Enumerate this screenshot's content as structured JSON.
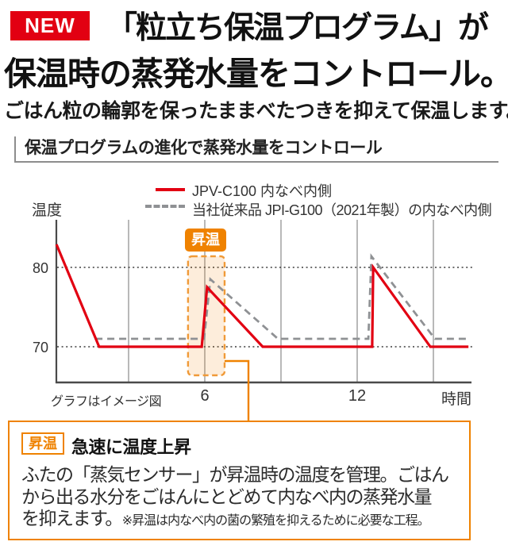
{
  "colors": {
    "brand_red": "#e20012",
    "orange": "#ef8200",
    "orange_dash": "#f09a38",
    "gray_dashed_line": "#8f9194",
    "grid_line": "#9b9b9b",
    "axis_line": "#4a4a4a"
  },
  "header": {
    "badge_new": "NEW",
    "title_line1": "「粒立ち保温プログラム」が",
    "title_line2": "保温時の蒸発水量をコントロール。",
    "subtitle": "ごはん粒の輪郭を保ったままべたつきを抑えて保温します。"
  },
  "section": {
    "heading": "保温プログラムの進化で蒸発水量をコントロール"
  },
  "chart_data": {
    "type": "line",
    "y_axis_label": "温度",
    "x_axis_label": "時間",
    "yticks": [
      80,
      70
    ],
    "xticks": [
      6,
      12
    ],
    "grid_hours": [
      3,
      6,
      9,
      12,
      15
    ],
    "x_range": [
      0,
      16.5
    ],
    "note": "グラフはイメージ図",
    "series": [
      {
        "name": "JPV-C100 内なべ内側",
        "color": "#e20012",
        "style": "solid",
        "points": [
          [
            0.16,
            82.9
          ],
          [
            1.84,
            70
          ],
          [
            5.88,
            70
          ],
          [
            6.09,
            77.5
          ],
          [
            8.28,
            70
          ],
          [
            12.59,
            70
          ],
          [
            12.63,
            80
          ],
          [
            14.88,
            70
          ],
          [
            16.38,
            70
          ]
        ]
      },
      {
        "name": "当社従来品 JPI-G100（2021年製）の内なべ内側",
        "color": "#8f9194",
        "style": "dashed",
        "points": [
          [
            1.69,
            71
          ],
          [
            5.97,
            71
          ],
          [
            6.22,
            78.5
          ],
          [
            8.88,
            71
          ],
          [
            12.44,
            71
          ],
          [
            12.56,
            81.4
          ],
          [
            15.06,
            71
          ],
          [
            16.38,
            71
          ]
        ]
      }
    ],
    "annotation": {
      "label": "昇温",
      "x_hours": [
        5.34,
        6.78
      ],
      "y_temps": [
        66.4,
        81.4
      ]
    }
  },
  "callout_box": {
    "badge": "昇温",
    "heading": "急速に温度上昇",
    "line1": "ふたの「蒸気センサー」が昇温時の温度を管理。ごはん",
    "line2": "から出る水分をごはんにとどめて内なべ内の蒸発水量",
    "line3_main": "を抑えます。",
    "line3_note": "※昇温は内なべ内の菌の繁殖を抑えるために必要な工程。"
  }
}
